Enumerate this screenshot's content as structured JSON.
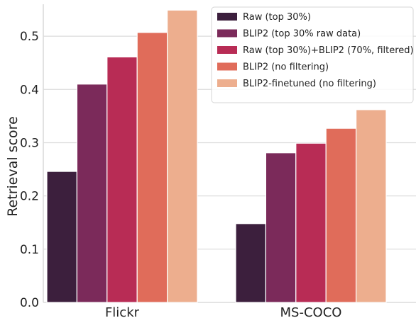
{
  "chart_data": {
    "type": "bar",
    "categories": [
      "Flickr",
      "MS-COCO"
    ],
    "ylabel": "Retrieval score",
    "xlabel": "",
    "ylim": [
      0,
      0.56
    ],
    "yticks": [
      "0.0",
      "0.1",
      "0.2",
      "0.3",
      "0.4",
      "0.5"
    ],
    "grid": "horizontal",
    "legend_position": "top-right",
    "series": [
      {
        "name": "Raw (top 30%)",
        "color": "#3c1f3d",
        "values": [
          0.246,
          0.148
        ]
      },
      {
        "name": "BLIP2 (top 30% raw data)",
        "color": "#7b2a5a",
        "values": [
          0.41,
          0.281
        ]
      },
      {
        "name": "Raw (top 30%)+BLIP2 (70%, filtered)",
        "color": "#b82c55",
        "values": [
          0.461,
          0.299
        ]
      },
      {
        "name": "BLIP2 (no filtering)",
        "color": "#e06c5a",
        "values": [
          0.507,
          0.327
        ]
      },
      {
        "name": "BLIP2-finetuned (no filtering)",
        "color": "#edae8e",
        "values": [
          0.549,
          0.362
        ]
      }
    ]
  }
}
